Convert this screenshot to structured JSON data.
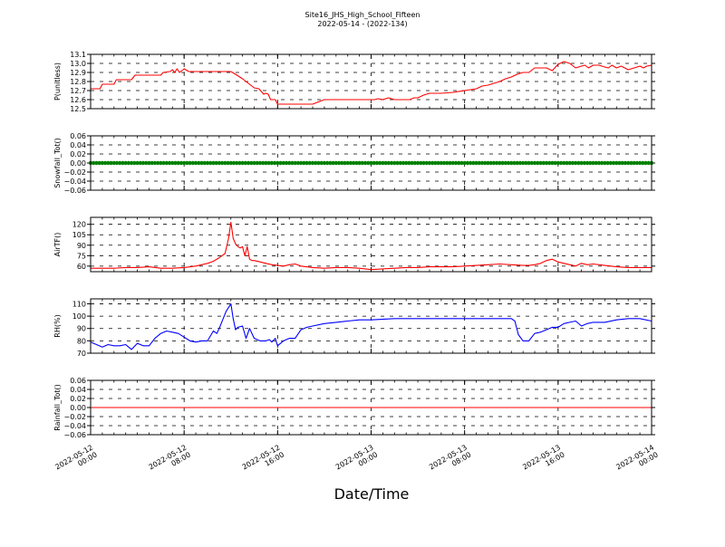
{
  "figure": {
    "title": "Site16_JHS_High_School_Fifteen",
    "subtitle": "2022-05-14 - (2022-134)",
    "xlabel": "Date/Time"
  },
  "chart_data": [
    {
      "type": "line",
      "ylabel": "P(unitless)",
      "ylim": [
        12.5,
        13.1
      ],
      "yticks": [
        "12.5",
        "12.6",
        "12.7",
        "12.8",
        "12.9",
        "13.0",
        "13.1"
      ],
      "xticks": [
        "2022-05-12\n00:00",
        "2022-05-12\n08:00",
        "2022-05-12\n16:00",
        "2022-05-13\n00:00",
        "2022-05-13\n08:00",
        "2022-05-13\n16:00",
        "2022-05-14\n00:00"
      ],
      "xlim_hours": [
        0,
        48
      ],
      "grid": true,
      "series": [
        {
          "color": "#ff0000",
          "x_hours": [
            0,
            0.8,
            1,
            2,
            2.2,
            3.5,
            3.8,
            6,
            6.2,
            6.8,
            7,
            7.2,
            7.4,
            7.6,
            8,
            8.4,
            8.6,
            9,
            12,
            12.4,
            13,
            14,
            14.4,
            14.6,
            14.8,
            15,
            15.2,
            15.4,
            15.5,
            15.8,
            16,
            16.2,
            16.4,
            17,
            18,
            19,
            20,
            21,
            22,
            23,
            24,
            24.3,
            24.6,
            25,
            25.5,
            26,
            27,
            27.3,
            27.7,
            28,
            28.5,
            29,
            30,
            31,
            32,
            33,
            33.5,
            34,
            35,
            35.5,
            36,
            36.5,
            37,
            37.5,
            38,
            38.5,
            39,
            39.5,
            40,
            40.5,
            41,
            41.5,
            42,
            42.3,
            42.6,
            43,
            43.5,
            44,
            44.3,
            44.6,
            45,
            45.4,
            46,
            46.5,
            47,
            47.3,
            47.6,
            48
          ],
          "y": [
            12.72,
            12.72,
            12.77,
            12.77,
            12.82,
            12.82,
            12.87,
            12.87,
            12.9,
            12.91,
            12.93,
            12.9,
            12.94,
            12.9,
            12.94,
            12.91,
            12.91,
            12.91,
            12.91,
            12.88,
            12.83,
            12.73,
            12.72,
            12.69,
            12.66,
            12.67,
            12.66,
            12.6,
            12.6,
            12.6,
            12.55,
            12.55,
            12.55,
            12.55,
            12.55,
            12.55,
            12.6,
            12.6,
            12.6,
            12.6,
            12.6,
            12.6,
            12.61,
            12.6,
            12.62,
            12.6,
            12.6,
            12.6,
            12.62,
            12.62,
            12.65,
            12.67,
            12.67,
            12.68,
            12.7,
            12.72,
            12.75,
            12.76,
            12.8,
            12.83,
            12.85,
            12.88,
            12.9,
            12.9,
            12.95,
            12.95,
            12.95,
            12.92,
            12.99,
            13.02,
            13.0,
            12.95,
            12.97,
            12.98,
            12.95,
            12.98,
            12.98,
            12.96,
            12.95,
            12.98,
            12.95,
            12.97,
            12.93,
            12.95,
            12.97,
            12.95,
            12.97,
            12.98
          ]
        }
      ]
    },
    {
      "type": "scatter",
      "ylabel": "Snowfall_Tot()",
      "ylim": [
        -0.06,
        0.06
      ],
      "yticks": [
        "−0.06",
        "−0.04",
        "−0.02",
        "0.00",
        "0.02",
        "0.04",
        "0.06"
      ],
      "xlim_hours": [
        0,
        48
      ],
      "grid": true,
      "series": [
        {
          "color": "#008000",
          "constant": 0.0,
          "count": 193
        }
      ]
    },
    {
      "type": "line",
      "ylabel": "AirTF()",
      "ylim": [
        52,
        130
      ],
      "yticks": [
        "60",
        "75",
        "90",
        "105",
        "120"
      ],
      "xlim_hours": [
        0,
        48
      ],
      "grid": true,
      "series": [
        {
          "color": "#ff0000",
          "x_hours": [
            0,
            1,
            2,
            3,
            4,
            5,
            6,
            7,
            8,
            9,
            10,
            10.5,
            11,
            11.5,
            11.8,
            12,
            12.2,
            12.4,
            12.6,
            12.8,
            13,
            13.2,
            13.4,
            13.6,
            13.8,
            14,
            14.5,
            15,
            15.5,
            16,
            16.5,
            17,
            17.5,
            18,
            19,
            20,
            21,
            22,
            23,
            24,
            25,
            26,
            27,
            28,
            29,
            30,
            31,
            32,
            33,
            34,
            35,
            36,
            37,
            37.5,
            38,
            38.5,
            39,
            39.5,
            40,
            40.5,
            41,
            41.5,
            42,
            42.5,
            43,
            44,
            45,
            46,
            47,
            48
          ],
          "y": [
            57,
            57,
            57,
            58,
            58,
            59,
            57,
            57,
            58,
            60,
            64,
            67,
            72,
            78,
            100,
            123,
            100,
            92,
            88,
            86,
            88,
            75,
            88,
            70,
            68,
            68,
            66,
            64,
            62,
            61,
            60,
            62,
            63,
            60,
            58,
            57,
            58,
            58,
            57,
            55,
            56,
            57,
            58,
            58,
            59,
            59,
            59,
            60,
            61,
            62,
            63,
            62,
            61,
            61,
            62,
            64,
            68,
            70,
            66,
            64,
            62,
            60,
            64,
            62,
            63,
            61,
            59,
            58,
            58,
            58
          ]
        }
      ]
    },
    {
      "type": "line",
      "ylabel": "RH(%)",
      "ylim": [
        70,
        114
      ],
      "yticks": [
        "70",
        "80",
        "90",
        "100",
        "110"
      ],
      "xlim_hours": [
        0,
        48
      ],
      "grid": true,
      "series": [
        {
          "color": "#0000ff",
          "x_hours": [
            0,
            1,
            1.5,
            2,
            2.5,
            3,
            3.5,
            4,
            4.5,
            5,
            5.5,
            6,
            6.5,
            7,
            7.5,
            8,
            8.5,
            9,
            9.5,
            10,
            10.5,
            10.8,
            11,
            11.3,
            11.6,
            12,
            12.2,
            12.4,
            12.6,
            13,
            13.3,
            13.6,
            14,
            14.5,
            15,
            15.3,
            15.5,
            15.8,
            16,
            16.5,
            17,
            17.5,
            18,
            18.5,
            19,
            20,
            21,
            22,
            23,
            24,
            26,
            28,
            30,
            32,
            34,
            36,
            36.3,
            36.6,
            37,
            37.5,
            38,
            38.5,
            39,
            39.5,
            40,
            40.5,
            41,
            41.5,
            42,
            42.5,
            43,
            44,
            45,
            46,
            47,
            48
          ],
          "y": [
            79,
            75,
            77,
            76,
            76,
            77,
            73,
            78,
            76,
            76,
            82,
            86,
            88,
            87,
            86,
            83,
            80,
            79,
            80,
            80,
            88,
            86,
            90,
            97,
            104,
            110,
            98,
            89,
            91,
            92,
            82,
            90,
            82,
            80,
            80,
            81,
            79,
            82,
            76,
            80,
            82,
            82,
            89,
            91,
            92,
            94,
            95,
            96,
            97,
            97,
            98,
            98,
            98,
            98,
            98,
            98,
            96,
            85,
            80,
            80,
            86,
            87,
            89,
            91,
            91,
            94,
            95,
            96,
            92,
            94,
            95,
            95,
            97,
            98,
            98,
            96
          ]
        }
      ]
    },
    {
      "type": "line",
      "ylabel": "Rainfall_Tot()",
      "ylim": [
        -0.06,
        0.06
      ],
      "yticks": [
        "−0.06",
        "−0.04",
        "−0.02",
        "0.00",
        "0.02",
        "0.04",
        "0.06"
      ],
      "xlim_hours": [
        0,
        48
      ],
      "grid": true,
      "series": [
        {
          "color": "#ff0000",
          "x_hours": [
            0,
            48
          ],
          "y": [
            0,
            0
          ]
        }
      ]
    }
  ]
}
